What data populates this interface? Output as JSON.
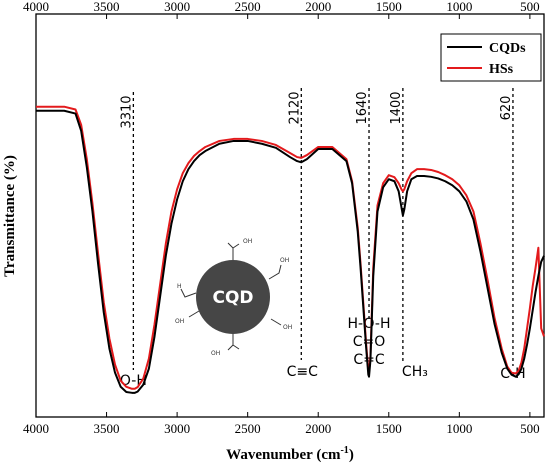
{
  "chart_data": {
    "type": "line",
    "title": "",
    "xlabel": "Wavenumber (cm",
    "xlabel_sup": "-1",
    "xlabel_close": ")",
    "ylabel": "Transmittance (%)",
    "xlim": [
      4000,
      400
    ],
    "ylim": [
      0,
      100
    ],
    "x_reversed": true,
    "y_ticks_shown": false,
    "x_ticks": [
      4000,
      3500,
      3000,
      2500,
      2000,
      1500,
      1000,
      500
    ],
    "x_tick_labels": [
      "4000",
      "3500",
      "3000",
      "2500",
      "2000",
      "1500",
      "1000",
      "500"
    ],
    "grid": false,
    "legend_position": "top-right",
    "series": [
      {
        "name": "CQDs",
        "color": "#000000",
        "x": [
          4000,
          3800,
          3720,
          3680,
          3640,
          3600,
          3560,
          3520,
          3480,
          3440,
          3400,
          3360,
          3320,
          3300,
          3280,
          3240,
          3200,
          3160,
          3120,
          3080,
          3040,
          3000,
          2960,
          2920,
          2880,
          2840,
          2800,
          2700,
          2600,
          2500,
          2400,
          2300,
          2200,
          2150,
          2120,
          2080,
          2000,
          1900,
          1800,
          1760,
          1720,
          1700,
          1680,
          1660,
          1645,
          1640,
          1630,
          1610,
          1580,
          1540,
          1500,
          1460,
          1430,
          1410,
          1400,
          1390,
          1370,
          1340,
          1300,
          1250,
          1200,
          1150,
          1100,
          1050,
          1000,
          950,
          900,
          850,
          800,
          750,
          700,
          660,
          630,
          600,
          580,
          560,
          540,
          520,
          500,
          480,
          460,
          440,
          420,
          400
        ],
        "y": [
          76.0,
          76.0,
          75.3,
          71.0,
          62.0,
          51.0,
          38.0,
          26.0,
          17.0,
          11.0,
          7.5,
          6.2,
          6.0,
          6.0,
          6.3,
          8.0,
          12.0,
          20.0,
          30.0,
          40.0,
          48.0,
          54.0,
          58.5,
          61.5,
          63.5,
          65.0,
          66.0,
          67.8,
          68.5,
          68.5,
          67.8,
          66.8,
          64.5,
          63.5,
          63.2,
          64.0,
          66.5,
          66.5,
          63.5,
          58.0,
          46.0,
          37.0,
          27.0,
          17.0,
          10.5,
          10.0,
          14.0,
          35.0,
          51.0,
          57.0,
          59.0,
          58.5,
          56.0,
          52.0,
          50.0,
          51.5,
          56.0,
          59.0,
          59.8,
          59.8,
          59.6,
          59.2,
          58.5,
          57.5,
          56.0,
          53.5,
          49.0,
          41.0,
          32.0,
          23.0,
          16.0,
          12.0,
          10.5,
          10.0,
          10.6,
          12.0,
          14.5,
          18.0,
          22.0,
          26.5,
          31.0,
          35.0,
          38.5,
          40.0
        ]
      },
      {
        "name": "HSs",
        "color": "#e31a1c",
        "x": [
          4000,
          3800,
          3720,
          3680,
          3640,
          3600,
          3560,
          3520,
          3480,
          3440,
          3400,
          3360,
          3320,
          3300,
          3280,
          3240,
          3200,
          3160,
          3120,
          3080,
          3040,
          3000,
          2960,
          2920,
          2880,
          2840,
          2800,
          2700,
          2600,
          2500,
          2400,
          2300,
          2200,
          2150,
          2120,
          2080,
          2000,
          1900,
          1800,
          1760,
          1720,
          1700,
          1680,
          1660,
          1645,
          1640,
          1630,
          1610,
          1580,
          1540,
          1500,
          1460,
          1430,
          1410,
          1400,
          1390,
          1370,
          1340,
          1300,
          1250,
          1200,
          1150,
          1100,
          1050,
          1000,
          950,
          900,
          850,
          800,
          750,
          700,
          660,
          630,
          600,
          580,
          560,
          540,
          520,
          500,
          480,
          460,
          440,
          420,
          400
        ],
        "y": [
          77.0,
          77.0,
          76.3,
          72.5,
          64.0,
          53.0,
          40.5,
          28.5,
          19.5,
          13.0,
          9.0,
          7.5,
          7.0,
          7.0,
          7.4,
          9.5,
          14.5,
          23.0,
          33.0,
          43.0,
          51.0,
          56.5,
          60.5,
          63.0,
          64.8,
          66.0,
          67.0,
          68.5,
          69.0,
          69.0,
          68.5,
          67.5,
          65.5,
          64.5,
          64.3,
          65.0,
          67.0,
          67.0,
          64.0,
          58.5,
          47.0,
          38.0,
          28.0,
          18.0,
          11.5,
          11.0,
          15.0,
          37.0,
          52.5,
          58.0,
          60.0,
          59.5,
          58.0,
          56.5,
          56.0,
          56.5,
          58.5,
          60.5,
          61.5,
          61.5,
          61.3,
          60.8,
          60.0,
          59.0,
          57.5,
          55.0,
          51.0,
          43.0,
          34.0,
          24.5,
          17.0,
          12.5,
          11.0,
          10.8,
          11.5,
          13.5,
          17.0,
          22.0,
          27.0,
          32.5,
          37.0,
          42.0,
          22.0,
          20.0
        ]
      }
    ],
    "annotations": [
      {
        "x": 3310,
        "label": "3310",
        "group": "O-H"
      },
      {
        "x": 2120,
        "label": "2120",
        "group": "C≡C"
      },
      {
        "x": 1640,
        "label": "1640",
        "group": "H-O-H\nC=O\nC=C"
      },
      {
        "x": 1400,
        "label": "1400",
        "group": "CH₃"
      },
      {
        "x": 620,
        "label": "620",
        "group": "C-H"
      }
    ],
    "inset": {
      "text": "CQD",
      "functional_groups": [
        "OH",
        "OH",
        "OH",
        "H",
        "OH",
        "OH"
      ]
    }
  }
}
